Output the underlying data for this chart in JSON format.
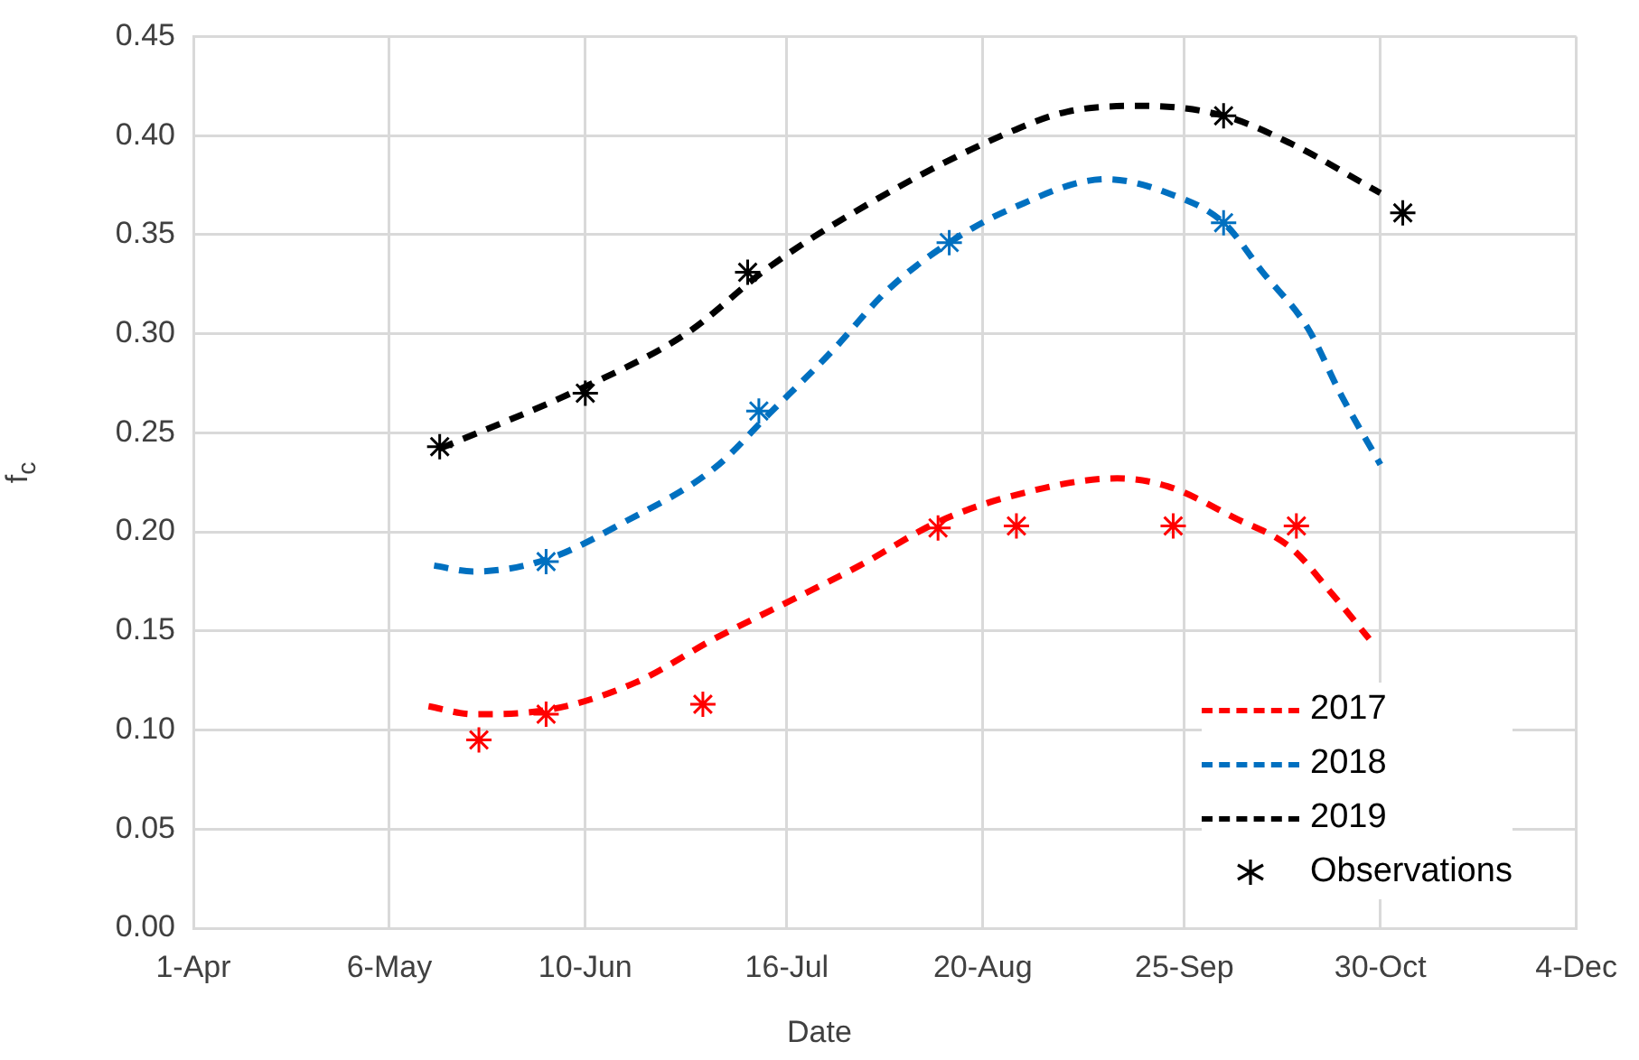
{
  "chart_data": {
    "type": "line",
    "xlabel": "Date",
    "ylabel": "f$_{c}$",
    "grid": true,
    "legend": "bottom right",
    "xlim": [
      "--04-01",
      "--12-04"
    ],
    "xticks": [
      {
        "value": "--04-01",
        "label": "1-Apr"
      },
      {
        "value": "--05-06",
        "label": "6-May"
      },
      {
        "value": "--06-10",
        "label": "10-Jun"
      },
      {
        "value": "--07-16",
        "label": "16-Jul"
      },
      {
        "value": "--08-20",
        "label": "20-Aug"
      },
      {
        "value": "--09-25",
        "label": "25-Sep"
      },
      {
        "value": "--10-30",
        "label": "30-Oct"
      },
      {
        "value": "--12-04",
        "label": "4-Dec"
      }
    ],
    "ylim": [
      0,
      0.45
    ],
    "yticks": [
      {
        "value": 0,
        "label": "0.00"
      },
      {
        "value": 0.05,
        "label": "0.05"
      },
      {
        "value": 0.1,
        "label": "0.10"
      },
      {
        "value": 0.15,
        "label": "0.15"
      },
      {
        "value": 0.2,
        "label": "0.20"
      },
      {
        "value": 0.25,
        "label": "0.25"
      },
      {
        "value": 0.3,
        "label": "0.30"
      },
      {
        "value": 0.35,
        "label": "0.35"
      },
      {
        "value": 0.4,
        "label": "0.40"
      },
      {
        "value": 0.45,
        "label": "0.45"
      }
    ],
    "series": [
      {
        "name": "2017",
        "color": "#ff0000",
        "line_style": "dashed",
        "marker": "none",
        "x": [
          "--05-13",
          "--05-21",
          "--06-03",
          "--06-19",
          "--07-03",
          "--07-15",
          "--07-29",
          "--08-12",
          "--08-25",
          "--09-13",
          "--09-22",
          "--10-04",
          "--10-14",
          "--10-21",
          "--10-28"
        ],
        "values": [
          0.112,
          0.108,
          0.11,
          0.124,
          0.146,
          0.163,
          0.183,
          0.205,
          0.218,
          0.227,
          0.223,
          0.207,
          0.192,
          0.17,
          0.146
        ]
      },
      {
        "name": "2018",
        "color": "#0070c0",
        "line_style": "dashed",
        "marker": "none",
        "x": [
          "--05-14",
          "--05-21",
          "--06-03",
          "--06-17",
          "--07-03",
          "--07-13",
          "--07-24",
          "--08-03",
          "--08-14",
          "--08-25",
          "--09-11",
          "--09-22",
          "--10-02",
          "--10-09",
          "--10-17",
          "--10-23",
          "--10-30"
        ],
        "values": [
          0.183,
          0.18,
          0.186,
          0.205,
          0.232,
          0.26,
          0.291,
          0.322,
          0.346,
          0.363,
          0.378,
          0.371,
          0.356,
          0.331,
          0.303,
          0.269,
          0.234
        ]
      },
      {
        "name": "2019",
        "color": "#000000",
        "line_style": "dashed",
        "marker": "none",
        "x": [
          "--05-15",
          "--06-09",
          "--06-28",
          "--07-13",
          "--08-03",
          "--08-25",
          "--09-04",
          "--09-17",
          "--10-02",
          "--10-14",
          "--10-30"
        ],
        "values": [
          0.242,
          0.272,
          0.3,
          0.334,
          0.371,
          0.402,
          0.412,
          0.415,
          0.41,
          0.396,
          0.371
        ]
      },
      {
        "name": "Observations",
        "type": "scatter",
        "color": "#000000",
        "marker": "cross",
        "x": [
          "--05-15",
          "--06-10",
          "--07-09",
          "--10-02",
          "--11-03"
        ],
        "values": [
          0.243,
          0.27,
          0.331,
          0.41,
          0.361
        ]
      },
      {
        "type": "scatter",
        "color": "#0070c0",
        "marker": "cross",
        "x": [
          "--06-03",
          "--07-11",
          "--08-14",
          "--10-02"
        ],
        "values": [
          0.185,
          0.261,
          0.346,
          0.356
        ]
      },
      {
        "type": "scatter",
        "color": "#ff0000",
        "marker": "cross",
        "x": [
          "--05-22",
          "--06-03",
          "--07-01",
          "--08-12",
          "--08-26",
          "--09-23",
          "--10-15"
        ],
        "values": [
          0.095,
          0.108,
          0.113,
          0.202,
          0.203,
          0.203,
          0.203
        ]
      }
    ]
  }
}
